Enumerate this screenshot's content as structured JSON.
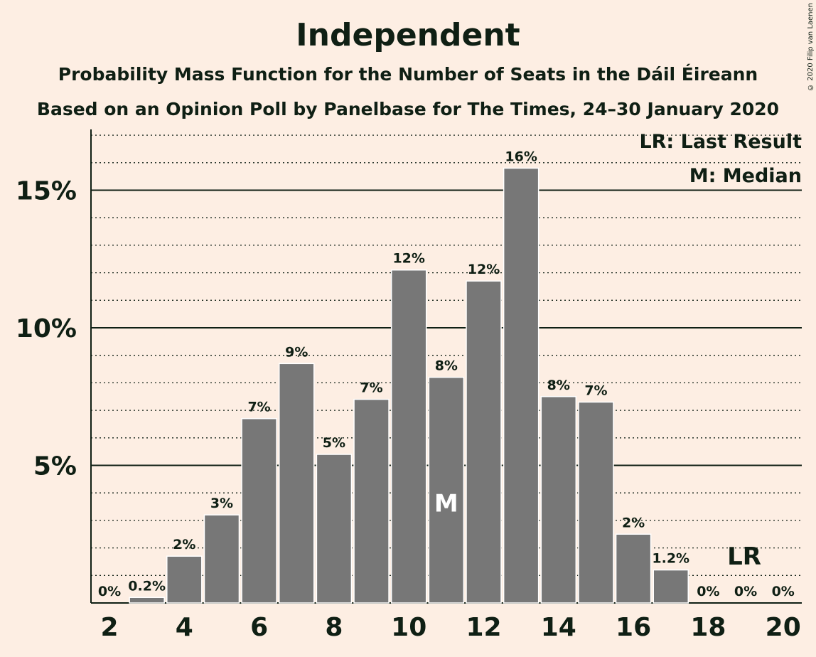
{
  "credit": "© 2020 Filip van Laenen",
  "legend": {
    "lr": "LR: Last Result",
    "m": "M: Median"
  },
  "markers": {
    "median_label": "M",
    "last_result_label": "LR"
  },
  "colors": {
    "background": "#FDEEE3",
    "bar": "#777777",
    "bar_edge": "#FFFFFF",
    "text": "#0F1F14"
  },
  "chart_data": {
    "type": "bar",
    "title": "Independent",
    "subtitle": "Probability Mass Function for the Number of Seats in the Dáil Éireann",
    "subtitle2": "Based on an Opinion Poll by Panelbase for The Times, 24–30 January 2020",
    "xlabel": "",
    "ylabel": "",
    "categories": [
      2,
      3,
      4,
      5,
      6,
      7,
      8,
      9,
      10,
      11,
      12,
      13,
      14,
      15,
      16,
      17,
      18,
      19,
      20
    ],
    "values": [
      0,
      0.2,
      1.7,
      3.2,
      6.7,
      8.7,
      5.4,
      7.4,
      12.1,
      8.2,
      11.7,
      15.8,
      7.5,
      7.3,
      2.5,
      1.2,
      0,
      0,
      0
    ],
    "data_labels": [
      "0%",
      "0.2%",
      "2%",
      "3%",
      "7%",
      "9%",
      "5%",
      "7%",
      "12%",
      "8%",
      "12%",
      "16%",
      "8%",
      "7%",
      "2%",
      "1.2%",
      "0%",
      "0%",
      "0%"
    ],
    "x_ticks": [
      2,
      4,
      6,
      8,
      10,
      12,
      14,
      16,
      18,
      20
    ],
    "y_ticks": [
      {
        "value": 5,
        "label": "5%"
      },
      {
        "value": 10,
        "label": "10%"
      },
      {
        "value": 15,
        "label": "15%"
      }
    ],
    "ylim": [
      0,
      17.1
    ],
    "median": 11,
    "last_result": 19,
    "grid": true,
    "legend_position": "top-right"
  }
}
